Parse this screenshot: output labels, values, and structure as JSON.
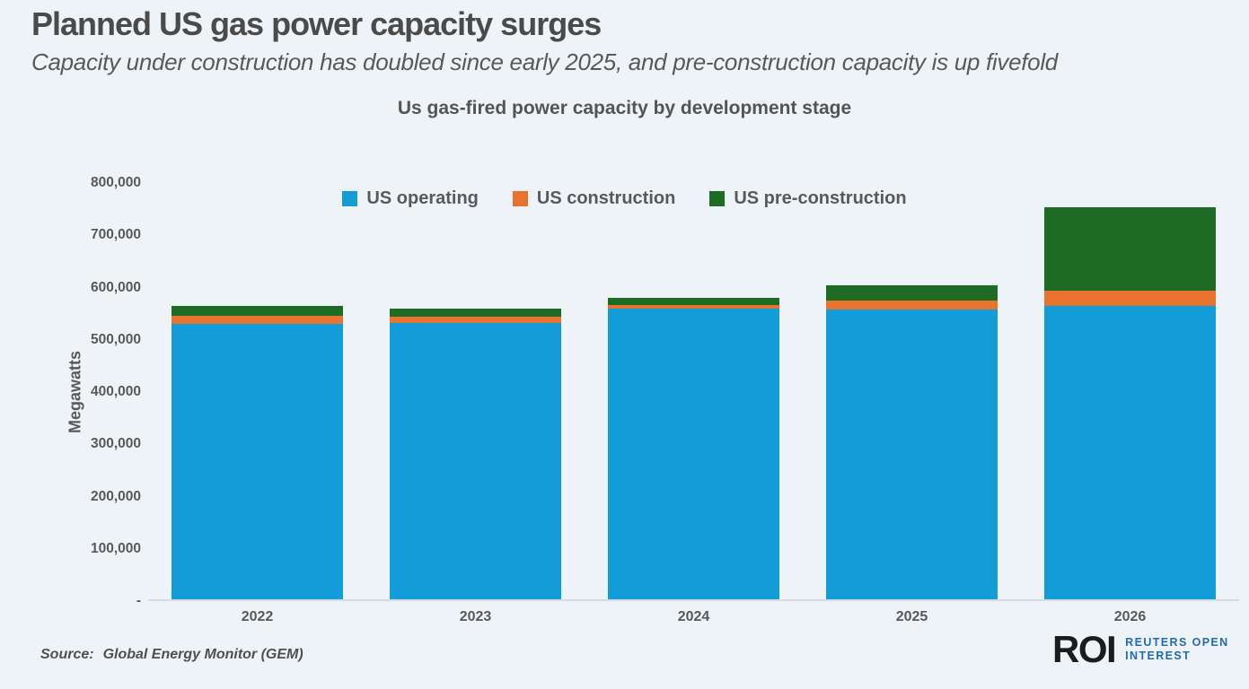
{
  "page": {
    "background": "#eef3f8"
  },
  "header": {
    "title": "Planned US gas power capacity surges",
    "subtitle": "Capacity under construction has doubled since early 2025, and pre-construction capacity is up fivefold"
  },
  "chart_data": {
    "type": "bar",
    "stacked": true,
    "title": "Us gas-fired power capacity by development stage",
    "xlabel": "",
    "ylabel": "Megawatts",
    "categories": [
      "2022",
      "2023",
      "2024",
      "2025",
      "2026"
    ],
    "series": [
      {
        "name": "US operating",
        "color": "#129dd9",
        "values": [
          527000,
          528000,
          557000,
          554500,
          561000
        ]
      },
      {
        "name": "US construction",
        "color": "#e8732f",
        "values": [
          16000,
          12000,
          7000,
          17000,
          30000
        ]
      },
      {
        "name": "US pre-construction",
        "color": "#1e6b26",
        "values": [
          19000,
          16500,
          13000,
          29000,
          159000
        ]
      }
    ],
    "totals": [
      562000,
      556500,
      577000,
      600500,
      750000
    ],
    "ylim": [
      0,
      800000
    ],
    "ytick_step": 100000,
    "ytick_labels": [
      "-",
      "100,000",
      "200,000",
      "300,000",
      "400,000",
      "500,000",
      "600,000",
      "700,000",
      "800,000"
    ],
    "grid": false,
    "legend_position": "top-center"
  },
  "footer": {
    "source_label": "Source:",
    "source_text": "Global Energy Monitor (GEM)",
    "logo": {
      "abbr": "ROI",
      "line1": "REUTERS OPEN",
      "line2": "INTEREST"
    }
  }
}
